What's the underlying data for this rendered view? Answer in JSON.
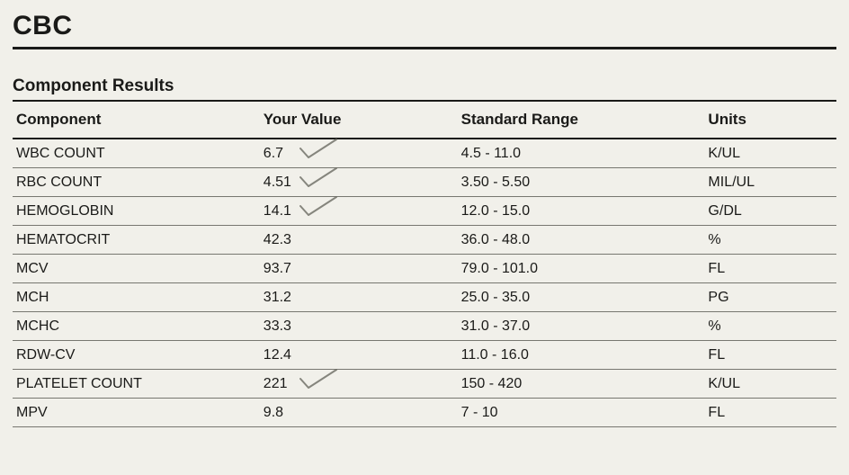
{
  "title": "CBC",
  "section_title": "Component Results",
  "columns": {
    "component": "Component",
    "value": "Your Value",
    "range": "Standard Range",
    "units": "Units"
  },
  "check_color": "#6b6b62",
  "rows": [
    {
      "component": "WBC COUNT",
      "value": "6.7",
      "range": "4.5 - 11.0",
      "units": "K/UL",
      "checked": true
    },
    {
      "component": "RBC COUNT",
      "value": "4.51",
      "range": "3.50 - 5.50",
      "units": "MIL/UL",
      "checked": true
    },
    {
      "component": "HEMOGLOBIN",
      "value": "14.1",
      "range": "12.0 - 15.0",
      "units": "G/DL",
      "checked": true
    },
    {
      "component": "HEMATOCRIT",
      "value": "42.3",
      "range": "36.0 - 48.0",
      "units": "%",
      "checked": false
    },
    {
      "component": "MCV",
      "value": "93.7",
      "range": "79.0 - 101.0",
      "units": "FL",
      "checked": false
    },
    {
      "component": "MCH",
      "value": "31.2",
      "range": "25.0 - 35.0",
      "units": "PG",
      "checked": false
    },
    {
      "component": "MCHC",
      "value": "33.3",
      "range": "31.0 - 37.0",
      "units": "%",
      "checked": false
    },
    {
      "component": "RDW-CV",
      "value": "12.4",
      "range": "11.0 - 16.0",
      "units": "FL",
      "checked": false
    },
    {
      "component": "PLATELET COUNT",
      "value": "221",
      "range": "150 - 420",
      "units": "K/UL",
      "checked": true
    },
    {
      "component": "MPV",
      "value": "9.8",
      "range": "7 - 10",
      "units": "FL",
      "checked": false
    }
  ]
}
